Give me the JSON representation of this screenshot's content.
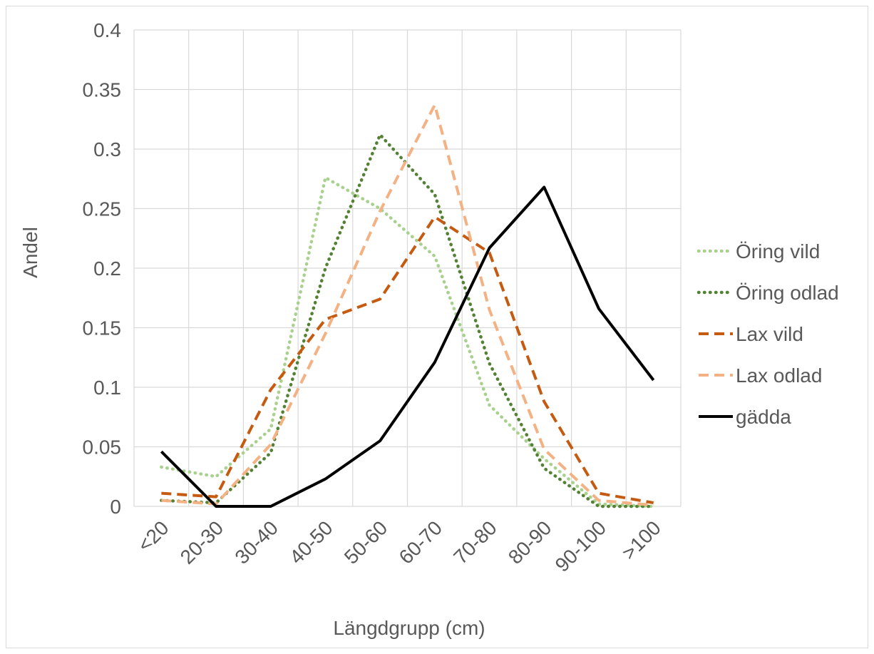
{
  "chart_data": {
    "type": "line",
    "title": "",
    "xlabel": "Längdgrupp (cm)",
    "ylabel": "Andel",
    "categories": [
      "<20",
      "20-30",
      "30-40",
      "40-50",
      "50-60",
      "60-70",
      "70-80",
      "80-90",
      "90-100",
      ">100"
    ],
    "ylim": [
      0,
      0.4
    ],
    "yticks": [
      "0",
      "0.05",
      "0.1",
      "0.15",
      "0.2",
      "0.25",
      "0.3",
      "0.35",
      "0.4"
    ],
    "grid": true,
    "legend_position": "right",
    "series": [
      {
        "name": "Öring vild",
        "color": "#a9d18e",
        "style": "dotted",
        "values": [
          0.033,
          0.025,
          0.065,
          0.276,
          0.25,
          0.21,
          0.085,
          0.04,
          0.002,
          0.0
        ]
      },
      {
        "name": "Öring odlad",
        "color": "#548235",
        "style": "dotted",
        "values": [
          0.005,
          0.003,
          0.045,
          0.2,
          0.312,
          0.262,
          0.12,
          0.032,
          0.0,
          0.0
        ]
      },
      {
        "name": "Lax vild",
        "color": "#c55a11",
        "style": "dashed",
        "values": [
          0.011,
          0.008,
          0.098,
          0.157,
          0.174,
          0.243,
          0.213,
          0.088,
          0.011,
          0.003
        ]
      },
      {
        "name": "Lax odlad",
        "color": "#f4b183",
        "style": "dashed",
        "values": [
          0.005,
          0.002,
          0.052,
          0.145,
          0.248,
          0.337,
          0.165,
          0.048,
          0.005,
          0.001
        ]
      },
      {
        "name": "gädda",
        "color": "#000000",
        "style": "solid",
        "values": [
          0.046,
          0.0,
          0.0,
          0.023,
          0.055,
          0.121,
          0.217,
          0.268,
          0.166,
          0.106
        ]
      }
    ]
  }
}
